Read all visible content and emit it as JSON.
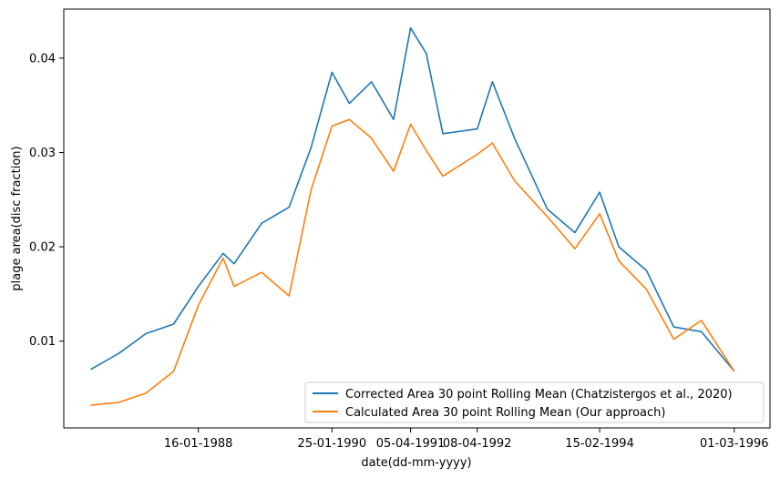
{
  "chart_data": {
    "type": "line",
    "title": "",
    "xlabel": "date(dd-mm-yyyy)",
    "ylabel": "plage area(disc fraction)",
    "x_ticks": [
      "16-01-1988",
      "25-01-1990",
      "05-04-1991",
      "08-04-1992",
      "15-02-1994",
      "01-03-1996"
    ],
    "y_ticks": [
      "0.01",
      "0.02",
      "0.03",
      "0.04"
    ],
    "ylim": [
      0.0008,
      0.0452
    ],
    "grid": false,
    "legend_position": "lower-right",
    "series": [
      {
        "name": "Corrected Area 30 point Rolling Mean (Chatzistergos et al., 2020)",
        "color": "#1f77b4",
        "x": [
          "30-05-1986",
          "01-11-1986",
          "01-04-1987",
          "01-09-1987",
          "16-01-1988",
          "01-06-1988",
          "01-08-1988",
          "01-01-1989",
          "01-06-1989",
          "01-10-1989",
          "25-01-1990",
          "01-05-1990",
          "01-09-1990",
          "01-01-1991",
          "05-04-1991",
          "01-07-1991",
          "01-10-1991",
          "08-04-1992",
          "01-07-1992",
          "01-11-1992",
          "01-05-1993",
          "01-10-1993",
          "15-02-1994",
          "01-06-1994",
          "01-11-1994",
          "01-04-1995",
          "01-09-1995",
          "01-03-1996"
        ],
        "y": [
          0.007,
          0.0087,
          0.0108,
          0.0118,
          0.0158,
          0.0193,
          0.0182,
          0.0225,
          0.0242,
          0.0305,
          0.0385,
          0.0352,
          0.0375,
          0.0335,
          0.0432,
          0.0405,
          0.032,
          0.0325,
          0.0375,
          0.0315,
          0.024,
          0.0215,
          0.0258,
          0.02,
          0.0175,
          0.0115,
          0.011,
          0.0068
        ]
      },
      {
        "name": "Calculated Area 30 point Rolling Mean (Our approach)",
        "color": "#ff7f0e",
        "x": [
          "30-05-1986",
          "01-11-1986",
          "01-04-1987",
          "01-09-1987",
          "16-01-1988",
          "01-06-1988",
          "01-08-1988",
          "01-01-1989",
          "01-06-1989",
          "01-10-1989",
          "25-01-1990",
          "01-05-1990",
          "01-09-1990",
          "01-01-1991",
          "05-04-1991",
          "01-07-1991",
          "01-10-1991",
          "08-04-1992",
          "01-07-1992",
          "01-11-1992",
          "01-05-1993",
          "01-10-1993",
          "15-02-1994",
          "01-06-1994",
          "01-11-1994",
          "01-04-1995",
          "01-09-1995",
          "01-03-1996"
        ],
        "y": [
          0.0032,
          0.0035,
          0.0045,
          0.0068,
          0.0138,
          0.0188,
          0.0158,
          0.0173,
          0.0148,
          0.026,
          0.0328,
          0.0335,
          0.0315,
          0.028,
          0.033,
          0.0302,
          0.0275,
          0.0298,
          0.031,
          0.027,
          0.0232,
          0.0198,
          0.0235,
          0.0185,
          0.0155,
          0.0102,
          0.0122,
          0.0068
        ]
      }
    ]
  }
}
